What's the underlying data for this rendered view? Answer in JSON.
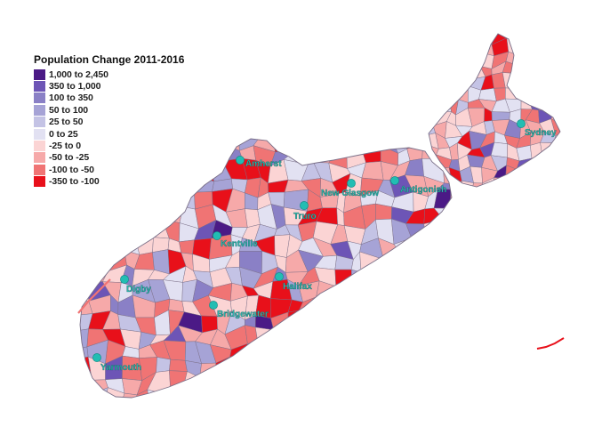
{
  "legend": {
    "title": "Population Change 2011-2016",
    "items": [
      {
        "label": "1,000 to 2,450",
        "color": "#4b1a86"
      },
      {
        "label": "350 to 1,000",
        "color": "#6d55b6"
      },
      {
        "label": "100 to  350",
        "color": "#8a80c6"
      },
      {
        "label": "50 to  100",
        "color": "#a6a3d6"
      },
      {
        "label": "25 to   50",
        "color": "#c4c3e5"
      },
      {
        "label": "0 to   25",
        "color": "#e2e1f2"
      },
      {
        "label": "-25 to    0",
        "color": "#fbd4d4"
      },
      {
        "label": "-50 to  -25",
        "color": "#f6a9a9"
      },
      {
        "label": "-100 to  -50",
        "color": "#f07474"
      },
      {
        "label": "-350 to -100",
        "color": "#e8101a"
      }
    ]
  },
  "cities": [
    {
      "name": "Amherst"
    },
    {
      "name": "New Glasgow"
    },
    {
      "name": "Antigonish"
    },
    {
      "name": "Sydney"
    },
    {
      "name": "Truro"
    },
    {
      "name": "Kentville"
    },
    {
      "name": "Halifax"
    },
    {
      "name": "Digby"
    },
    {
      "name": "Bridgewater"
    },
    {
      "name": "Yarmouth"
    }
  ],
  "colors": {
    "city_marker": "#22bdb3",
    "boundary": "#7a6f88"
  }
}
